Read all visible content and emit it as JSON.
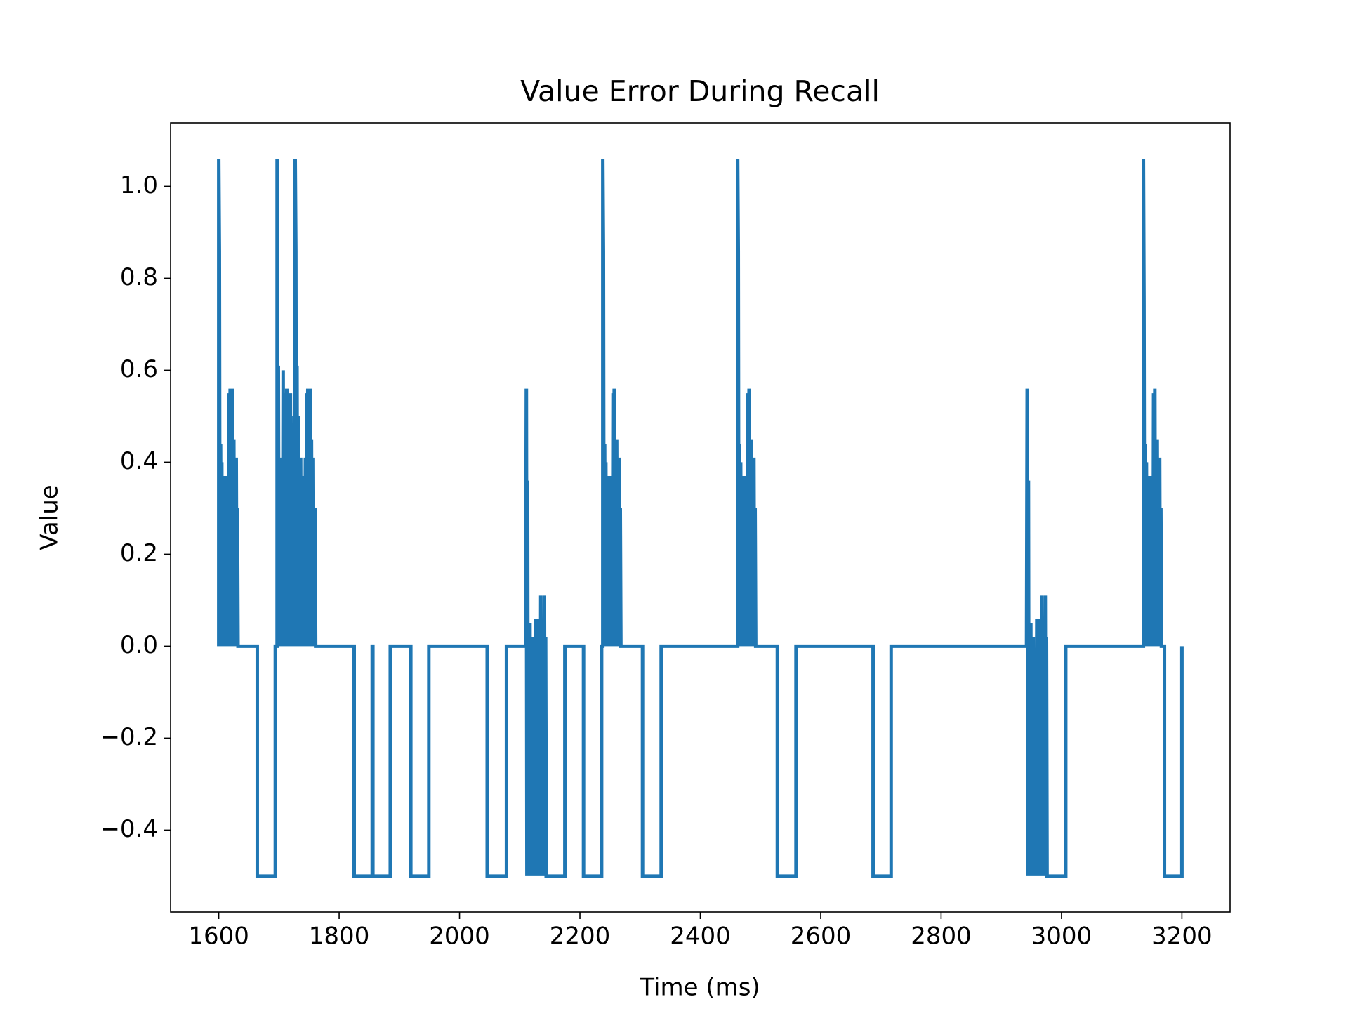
{
  "chart_data": {
    "type": "line",
    "title": "Value Error During Recall",
    "x_label": "Time (ms)",
    "y_label": "Value",
    "xlim": [
      1520,
      3280
    ],
    "ylim": [
      -0.578,
      1.138
    ],
    "xticks": [
      1600,
      1800,
      2000,
      2200,
      2400,
      2600,
      2800,
      3000,
      3200
    ],
    "yticks": [
      {
        "value": -0.4,
        "label": "−0.4"
      },
      {
        "value": -0.2,
        "label": "−0.2"
      },
      {
        "value": 0,
        "label": "0.0"
      },
      {
        "value": 0.2,
        "label": "0.2"
      },
      {
        "value": 0.4,
        "label": "0.4"
      },
      {
        "value": 0.6,
        "label": "0.6"
      },
      {
        "value": 0.8,
        "label": "0.8"
      },
      {
        "value": 1.0,
        "label": "1.0"
      }
    ],
    "grid": false,
    "series": [
      {
        "color": "#1f77b4",
        "x": [
          1600,
          1600,
          1601,
          1602,
          1603,
          1604,
          1605,
          1606,
          1607,
          1608,
          1609,
          1610,
          1611,
          1612,
          1613,
          1614,
          1615,
          1616,
          1617,
          1618,
          1619,
          1620,
          1621,
          1622,
          1623,
          1624,
          1625,
          1626,
          1627,
          1628,
          1629,
          1630,
          1631,
          1632,
          1664,
          1664,
          1694,
          1694,
          1697,
          1697,
          1698,
          1699,
          1700,
          1701,
          1702,
          1703,
          1704,
          1705,
          1706,
          1707,
          1708,
          1709,
          1710,
          1711,
          1712,
          1713,
          1714,
          1715,
          1716,
          1717,
          1718,
          1719,
          1720,
          1721,
          1722,
          1723,
          1724,
          1725,
          1726,
          1727,
          1728,
          1729,
          1730,
          1731,
          1732,
          1733,
          1734,
          1735,
          1736,
          1737,
          1738,
          1739,
          1740,
          1741,
          1742,
          1743,
          1744,
          1745,
          1746,
          1747,
          1748,
          1749,
          1750,
          1751,
          1752,
          1753,
          1754,
          1755,
          1756,
          1757,
          1758,
          1759,
          1760,
          1761,
          1825,
          1825,
          1855,
          1855,
          1856,
          1856,
          1885,
          1885,
          1919,
          1919,
          1949,
          1949,
          2046,
          2046,
          2078,
          2078,
          2110,
          2111,
          2112,
          2113,
          2114,
          2115,
          2116,
          2117,
          2118,
          2119,
          2120,
          2121,
          2122,
          2123,
          2124,
          2125,
          2126,
          2127,
          2128,
          2129,
          2130,
          2131,
          2132,
          2133,
          2134,
          2135,
          2136,
          2137,
          2138,
          2139,
          2140,
          2141,
          2142,
          2143,
          2144,
          2175,
          2175,
          2206,
          2206,
          2236,
          2236,
          2238,
          2238,
          2239,
          2240,
          2241,
          2242,
          2243,
          2244,
          2245,
          2246,
          2247,
          2248,
          2249,
          2250,
          2251,
          2252,
          2253,
          2254,
          2255,
          2256,
          2257,
          2258,
          2259,
          2260,
          2261,
          2262,
          2263,
          2264,
          2265,
          2266,
          2267,
          2268,
          2304,
          2304,
          2335,
          2335,
          2462,
          2462,
          2463,
          2464,
          2465,
          2466,
          2467,
          2468,
          2469,
          2470,
          2471,
          2472,
          2473,
          2474,
          2475,
          2476,
          2477,
          2478,
          2479,
          2480,
          2481,
          2482,
          2483,
          2484,
          2485,
          2486,
          2487,
          2488,
          2489,
          2490,
          2491,
          2492,
          2528,
          2528,
          2559,
          2559,
          2687,
          2687,
          2717,
          2717,
          2942,
          2943,
          2944,
          2945,
          2946,
          2947,
          2948,
          2949,
          2950,
          2951,
          2952,
          2953,
          2954,
          2955,
          2956,
          2957,
          2958,
          2959,
          2960,
          2961,
          2962,
          2963,
          2964,
          2965,
          2966,
          2967,
          2968,
          2969,
          2970,
          2971,
          2972,
          2973,
          2974,
          2975,
          2976,
          3007,
          3007,
          3136,
          3136,
          3137,
          3138,
          3139,
          3140,
          3141,
          3142,
          3143,
          3144,
          3145,
          3146,
          3147,
          3148,
          3149,
          3150,
          3151,
          3152,
          3153,
          3154,
          3155,
          3156,
          3157,
          3158,
          3159,
          3160,
          3161,
          3162,
          3163,
          3164,
          3165,
          3166,
          3171,
          3171,
          3200,
          3200
        ],
        "values": [
          0,
          1.06,
          0.86,
          0,
          0.44,
          0,
          0.4,
          0,
          0.37,
          0,
          0.37,
          0,
          0.3,
          0,
          0.37,
          0,
          0.36,
          0,
          0.55,
          0,
          0.56,
          0,
          0.3,
          0,
          0.56,
          0,
          0.45,
          0,
          0.41,
          0,
          0.41,
          0,
          0.3,
          0,
          0,
          -0.5,
          -0.5,
          0,
          0,
          1.06,
          0,
          0.61,
          0,
          0.41,
          0,
          0.37,
          0,
          0.41,
          0,
          0.6,
          0,
          0.37,
          0,
          0.55,
          0,
          0.56,
          0,
          0.41,
          0,
          0.37,
          0,
          0.55,
          0,
          0.3,
          0,
          0.37,
          0,
          0.5,
          0,
          1.06,
          0.86,
          0,
          0.61,
          0,
          0.5,
          0,
          0.37,
          0,
          0.41,
          0,
          0.37,
          0,
          0.3,
          0,
          0.37,
          0,
          0.41,
          0,
          0.55,
          0,
          0.56,
          0,
          0.37,
          0,
          0.56,
          0,
          0.45,
          0,
          0.41,
          0,
          0.3,
          0,
          0.3,
          0,
          0,
          -0.5,
          -0.5,
          0,
          0,
          -0.5,
          -0.5,
          0,
          0,
          -0.5,
          -0.5,
          0,
          0,
          -0.5,
          -0.5,
          0,
          0,
          0.56,
          -0.5,
          0.36,
          -0.5,
          -0.1,
          -0.5,
          0.05,
          -0.5,
          -0.2,
          -0.5,
          0.02,
          -0.5,
          -0.13,
          -0.5,
          -0.13,
          -0.5,
          0.06,
          -0.5,
          0.06,
          -0.5,
          -0.13,
          -0.5,
          0.06,
          -0.5,
          0.11,
          -0.5,
          -0.13,
          -0.5,
          0.04,
          -0.5,
          0.11,
          -0.5,
          0.02,
          -0.5,
          -0.5,
          0,
          0,
          -0.5,
          -0.5,
          0,
          0,
          1.06,
          0.86,
          0,
          0.44,
          0,
          0.4,
          0,
          0.37,
          0,
          0.37,
          0,
          0.3,
          0,
          0.37,
          0,
          0.36,
          0,
          0.55,
          0,
          0.56,
          0,
          0.3,
          0,
          0.45,
          0,
          0.41,
          0,
          0.41,
          0,
          0.3,
          0,
          0,
          -0.5,
          -0.5,
          0,
          0,
          1.06,
          0.86,
          0,
          0.44,
          0,
          0.4,
          0,
          0.37,
          0,
          0.37,
          0,
          0.3,
          0,
          0.37,
          0,
          0.36,
          0,
          0.55,
          0,
          0.56,
          0,
          0.3,
          0,
          0.45,
          0,
          0.41,
          0,
          0.41,
          0,
          0.3,
          0,
          0,
          -0.5,
          -0.5,
          0,
          0,
          -0.5,
          -0.5,
          0,
          0,
          0.56,
          -0.5,
          0.36,
          -0.5,
          -0.1,
          -0.5,
          0.05,
          -0.5,
          -0.2,
          -0.5,
          0.02,
          -0.5,
          -0.13,
          -0.5,
          -0.13,
          -0.5,
          0.06,
          -0.5,
          0.06,
          -0.5,
          -0.13,
          -0.5,
          0.06,
          -0.5,
          0.11,
          -0.5,
          -0.13,
          -0.5,
          0.04,
          -0.5,
          0.11,
          -0.5,
          0.02,
          -0.5,
          -0.5,
          0,
          0,
          1.06,
          0.75,
          0,
          0.44,
          0,
          0.4,
          0,
          0.37,
          0,
          0.37,
          0,
          0.3,
          0,
          0.37,
          0,
          0.36,
          0,
          0.55,
          0,
          0.56,
          0,
          0.3,
          0,
          0.45,
          0,
          0.41,
          0,
          0.41,
          0,
          0.3,
          0,
          0,
          -0.5,
          -0.5,
          0
        ]
      }
    ]
  }
}
